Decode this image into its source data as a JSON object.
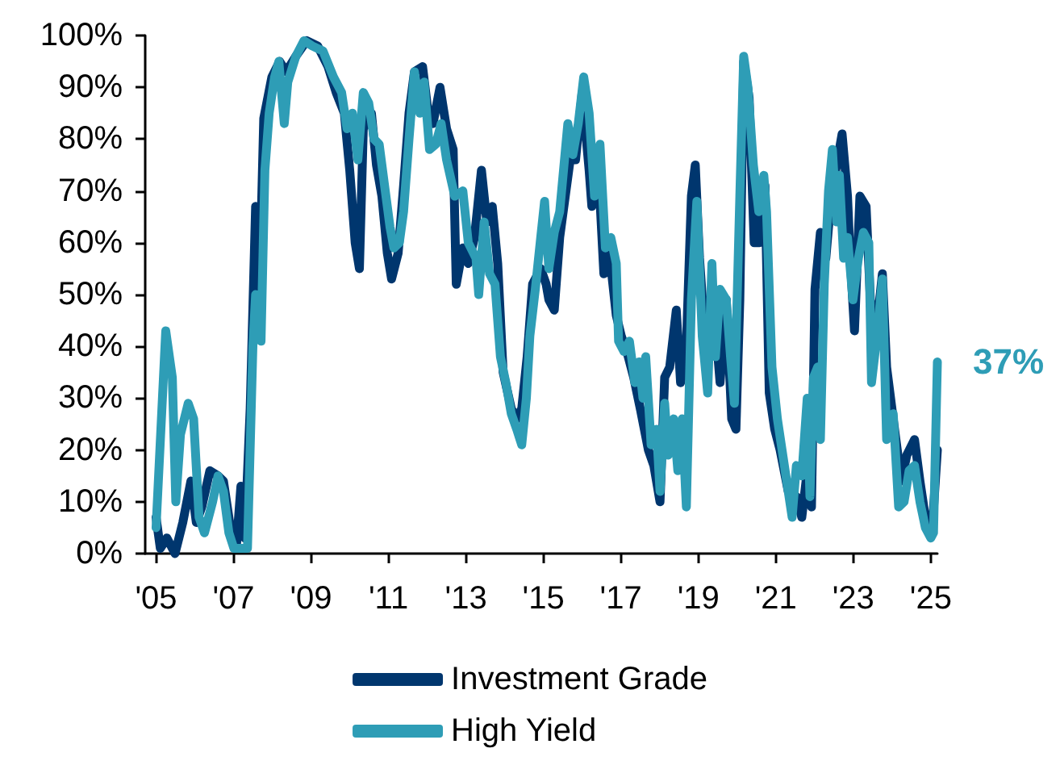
{
  "chart_data": {
    "type": "line",
    "xlim": [
      2004.72,
      2025.17
    ],
    "ylim": [
      0,
      100
    ],
    "xticks": [
      {
        "value": 2005,
        "label": "'05"
      },
      {
        "value": 2007,
        "label": "'07"
      },
      {
        "value": 2009,
        "label": "'09"
      },
      {
        "value": 2011,
        "label": "'11"
      },
      {
        "value": 2013,
        "label": "'13"
      },
      {
        "value": 2015,
        "label": "'15"
      },
      {
        "value": 2017,
        "label": "'17"
      },
      {
        "value": 2019,
        "label": "'19"
      },
      {
        "value": 2021,
        "label": "'21"
      },
      {
        "value": 2023,
        "label": "'23"
      },
      {
        "value": 2025,
        "label": "'25"
      }
    ],
    "yticks": [
      {
        "value": 0,
        "label": "0%"
      },
      {
        "value": 10,
        "label": "10%"
      },
      {
        "value": 20,
        "label": "20%"
      },
      {
        "value": 30,
        "label": "30%"
      },
      {
        "value": 40,
        "label": "40%"
      },
      {
        "value": 50,
        "label": "50%"
      },
      {
        "value": 60,
        "label": "60%"
      },
      {
        "value": 70,
        "label": "70%"
      },
      {
        "value": 80,
        "label": "80%"
      },
      {
        "value": 90,
        "label": "90%"
      },
      {
        "value": 100,
        "label": "100%"
      }
    ],
    "grid": false,
    "legend": "bottom",
    "marker": "none",
    "line_style": "solid",
    "annotations": [
      {
        "text": "37%",
        "x": 2025.17,
        "y": 37
      }
    ],
    "series": [
      {
        "name": "Investment Grade",
        "color": "#00366e",
        "x": [
          2005.0,
          2005.11,
          2005.28,
          2005.49,
          2005.69,
          2005.9,
          2006.04,
          2006.18,
          2006.39,
          2006.6,
          2006.74,
          2006.94,
          2007.08,
          2007.19,
          2007.29,
          2007.43,
          2007.57,
          2007.67,
          2007.78,
          2007.99,
          2008.19,
          2008.36,
          2008.61,
          2008.89,
          2009.17,
          2009.44,
          2009.65,
          2009.86,
          2010.0,
          2010.14,
          2010.25,
          2010.35,
          2010.56,
          2010.69,
          2010.83,
          2010.97,
          2011.08,
          2011.25,
          2011.39,
          2011.53,
          2011.67,
          2011.88,
          2012.01,
          2012.15,
          2012.33,
          2012.5,
          2012.67,
          2012.75,
          2012.92,
          2013.06,
          2013.22,
          2013.4,
          2013.54,
          2013.68,
          2013.82,
          2013.96,
          2014.17,
          2014.31,
          2014.44,
          2014.58,
          2014.72,
          2014.93,
          2015.07,
          2015.14,
          2015.28,
          2015.42,
          2015.69,
          2015.83,
          2016.0,
          2016.18,
          2016.25,
          2016.42,
          2016.56,
          2016.69,
          2016.88,
          2017.01,
          2017.19,
          2017.33,
          2017.5,
          2017.71,
          2017.85,
          2018.01,
          2018.13,
          2018.26,
          2018.43,
          2018.54,
          2018.68,
          2018.82,
          2018.92,
          2019.03,
          2019.17,
          2019.31,
          2019.44,
          2019.56,
          2019.72,
          2019.86,
          2019.97,
          2020.07,
          2020.17,
          2020.31,
          2020.44,
          2020.58,
          2020.72,
          2020.83,
          2020.97,
          2021.11,
          2021.32,
          2021.53,
          2021.67,
          2021.78,
          2021.92,
          2022.01,
          2022.15,
          2022.29,
          2022.43,
          2022.57,
          2022.71,
          2022.85,
          2022.92,
          2023.03,
          2023.17,
          2023.33,
          2023.44,
          2023.58,
          2023.75,
          2023.86,
          2024.03,
          2024.24,
          2024.38,
          2024.58,
          2024.72,
          2024.86,
          2025.03,
          2025.17
        ],
        "values": [
          7,
          1,
          3,
          0,
          6,
          14,
          6,
          9,
          16,
          15,
          14,
          4,
          2,
          13,
          3,
          28,
          67,
          51,
          84,
          92,
          95,
          93,
          96,
          99,
          98,
          94,
          89,
          85,
          74,
          60,
          55,
          82,
          85,
          75,
          69,
          58,
          53,
          58,
          71,
          85,
          93,
          94,
          86,
          83,
          90,
          82,
          78,
          52,
          59,
          56,
          61,
          74,
          64,
          67,
          56,
          35,
          28,
          26,
          28,
          38,
          52,
          55,
          52,
          49,
          47,
          61,
          76,
          76,
          89,
          74,
          67,
          74,
          54,
          59,
          46,
          42,
          38,
          34,
          28,
          20,
          17,
          10,
          34,
          36,
          47,
          33,
          38,
          69,
          75,
          57,
          42,
          41,
          44,
          33,
          49,
          26,
          24,
          49,
          95,
          88,
          60,
          60,
          71,
          31,
          24,
          20,
          12,
          11,
          7,
          14,
          9,
          51,
          62,
          57,
          69,
          75,
          81,
          69,
          57,
          43,
          69,
          67,
          49,
          42,
          54,
          36,
          26,
          14,
          19,
          22,
          14,
          7,
          4,
          20
        ]
      },
      {
        "name": "High Yield",
        "color": "#2e9db6",
        "x": [
          2005.0,
          2005.25,
          2005.42,
          2005.51,
          2005.63,
          2005.83,
          2005.97,
          2006.11,
          2006.25,
          2006.46,
          2006.6,
          2006.74,
          2006.88,
          2007.01,
          2007.22,
          2007.36,
          2007.5,
          2007.57,
          2007.71,
          2007.81,
          2007.92,
          2008.06,
          2008.17,
          2008.31,
          2008.4,
          2008.61,
          2008.82,
          2009.03,
          2009.31,
          2009.58,
          2009.79,
          2009.93,
          2010.07,
          2010.21,
          2010.35,
          2010.49,
          2010.63,
          2010.76,
          2010.9,
          2011.04,
          2011.14,
          2011.28,
          2011.39,
          2011.53,
          2011.67,
          2011.81,
          2011.92,
          2012.06,
          2012.22,
          2012.36,
          2012.5,
          2012.71,
          2012.92,
          2013.06,
          2013.26,
          2013.33,
          2013.47,
          2013.61,
          2013.75,
          2013.89,
          2014.03,
          2014.17,
          2014.31,
          2014.44,
          2014.56,
          2014.65,
          2014.79,
          2014.93,
          2015.03,
          2015.14,
          2015.28,
          2015.42,
          2015.63,
          2015.76,
          2015.9,
          2016.04,
          2016.18,
          2016.32,
          2016.46,
          2016.6,
          2016.74,
          2016.88,
          2016.94,
          2017.08,
          2017.22,
          2017.36,
          2017.47,
          2017.57,
          2017.64,
          2017.78,
          2017.92,
          2018.01,
          2018.13,
          2018.22,
          2018.36,
          2018.47,
          2018.58,
          2018.69,
          2018.82,
          2018.96,
          2019.1,
          2019.24,
          2019.35,
          2019.44,
          2019.56,
          2019.72,
          2019.83,
          2019.93,
          2020.07,
          2020.17,
          2020.28,
          2020.42,
          2020.56,
          2020.69,
          2020.76,
          2020.9,
          2021.04,
          2021.18,
          2021.32,
          2021.42,
          2021.53,
          2021.67,
          2021.81,
          2021.88,
          2021.97,
          2022.08,
          2022.15,
          2022.25,
          2022.36,
          2022.46,
          2022.57,
          2022.64,
          2022.75,
          2022.85,
          2022.99,
          2023.13,
          2023.26,
          2023.4,
          2023.47,
          2023.61,
          2023.75,
          2023.86,
          2024.03,
          2024.17,
          2024.31,
          2024.44,
          2024.58,
          2024.72,
          2024.86,
          2025.0,
          2025.07,
          2025.17
        ],
        "values": [
          5,
          43,
          34,
          10,
          23,
          29,
          26,
          7,
          4,
          10,
          15,
          12,
          4,
          1,
          1,
          1,
          40,
          50,
          41,
          74,
          85,
          92,
          95,
          83,
          91,
          96,
          99,
          98,
          97,
          92,
          89,
          82,
          85,
          76,
          89,
          87,
          80,
          79,
          71,
          63,
          59,
          60,
          66,
          80,
          93,
          85,
          91,
          78,
          79,
          83,
          76,
          69,
          70,
          60,
          57,
          50,
          64,
          54,
          52,
          38,
          33,
          27,
          24,
          21,
          30,
          42,
          51,
          61,
          68,
          55,
          62,
          66,
          83,
          77,
          83,
          92,
          85,
          69,
          79,
          59,
          61,
          56,
          41,
          39,
          41,
          33,
          37,
          30,
          38,
          21,
          24,
          12,
          29,
          19,
          26,
          16,
          26,
          9,
          49,
          68,
          42,
          31,
          56,
          38,
          51,
          49,
          38,
          29,
          69,
          96,
          90,
          75,
          66,
          73,
          66,
          36,
          26,
          19,
          12,
          7,
          17,
          15,
          30,
          11,
          34,
          36,
          22,
          52,
          70,
          78,
          64,
          73,
          57,
          61,
          49,
          57,
          62,
          60,
          33,
          42,
          53,
          22,
          27,
          9,
          10,
          16,
          17,
          10,
          5,
          3,
          4,
          37
        ]
      }
    ]
  }
}
